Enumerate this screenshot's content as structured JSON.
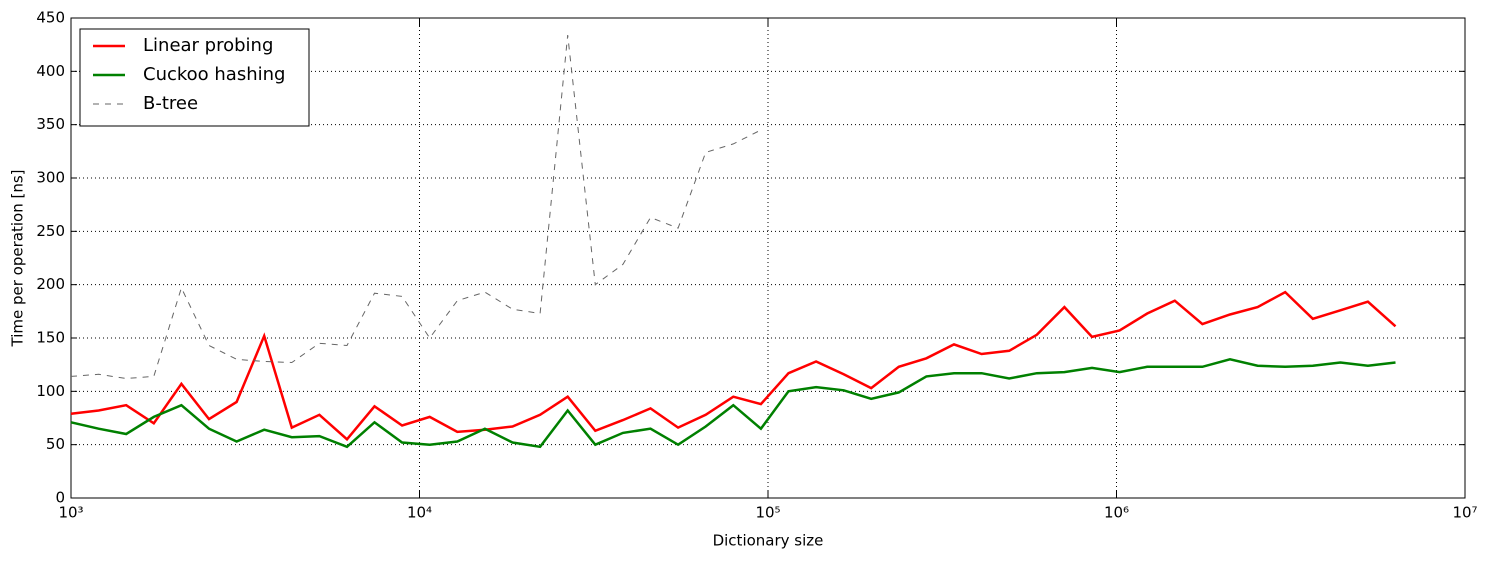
{
  "chart_data": {
    "type": "line",
    "log_x": true,
    "grid": true,
    "legend": "upper left",
    "xlabel": "Dictionary size",
    "ylabel": "Time per operation [ns]",
    "x": [
      1000,
      1200,
      1440,
      1728,
      2074,
      2488,
      2986,
      3583,
      4300,
      5160,
      6192,
      7430,
      8916,
      10699,
      12839,
      15407,
      18488,
      22186,
      26623,
      31948,
      38338,
      46005,
      55206,
      66247,
      79497,
      95396,
      114475,
      137370,
      164845,
      197814,
      237376,
      284852,
      341822,
      410186,
      492224,
      590668,
      708802,
      850562,
      1020675,
      1224810,
      1469772,
      1763726,
      2116471,
      2539765,
      3047718,
      3657262,
      4388714,
      5266457,
      6319749
    ],
    "series": [
      {
        "name": "Linear probing",
        "color": "#ff0000",
        "dash": false,
        "values": [
          79,
          82,
          87,
          70,
          107,
          74,
          90,
          152,
          66,
          78,
          55,
          86,
          68,
          76,
          62,
          64,
          67,
          78,
          95,
          63,
          73,
          84,
          66,
          78,
          95,
          88,
          117,
          128,
          116,
          103,
          123,
          131,
          144,
          135,
          138,
          153,
          179,
          151,
          157,
          173,
          185,
          163,
          172,
          179,
          193,
          168,
          176,
          184,
          161
        ]
      },
      {
        "name": "Cuckoo hashing",
        "color": "#008000",
        "dash": false,
        "values": [
          71,
          65,
          60,
          76,
          87,
          65,
          53,
          64,
          57,
          58,
          48,
          71,
          52,
          50,
          53,
          65,
          52,
          48,
          82,
          50,
          61,
          65,
          50,
          67,
          87,
          65,
          100,
          104,
          101,
          93,
          99,
          114,
          117,
          117,
          112,
          117,
          118,
          122,
          118,
          123,
          123,
          123,
          130,
          124,
          123,
          124,
          127,
          124,
          127
        ]
      },
      {
        "name": "B-tree",
        "color": "#666666",
        "dash": true,
        "values": [
          114,
          116,
          112,
          114,
          197,
          143,
          130,
          128,
          127,
          145,
          143,
          192,
          189,
          150,
          185,
          193,
          177,
          173,
          434,
          200,
          219,
          263,
          253,
          324,
          332,
          345,
          null,
          null,
          null,
          null,
          null,
          null,
          null,
          null,
          null,
          null,
          null,
          null,
          null,
          null,
          null,
          null,
          null,
          null,
          null,
          null,
          null,
          null,
          null
        ]
      }
    ],
    "xlim": [
      1000,
      10000000
    ],
    "xticks": [
      {
        "value": 1000,
        "label": "10³"
      },
      {
        "value": 10000,
        "label": "10⁴"
      },
      {
        "value": 100000,
        "label": "10⁵"
      },
      {
        "value": 1000000,
        "label": "10⁶"
      },
      {
        "value": 10000000,
        "label": "10⁷"
      }
    ],
    "ylim": [
      0,
      450
    ],
    "yticks": [
      0,
      50,
      100,
      150,
      200,
      250,
      300,
      350,
      400,
      450
    ]
  }
}
